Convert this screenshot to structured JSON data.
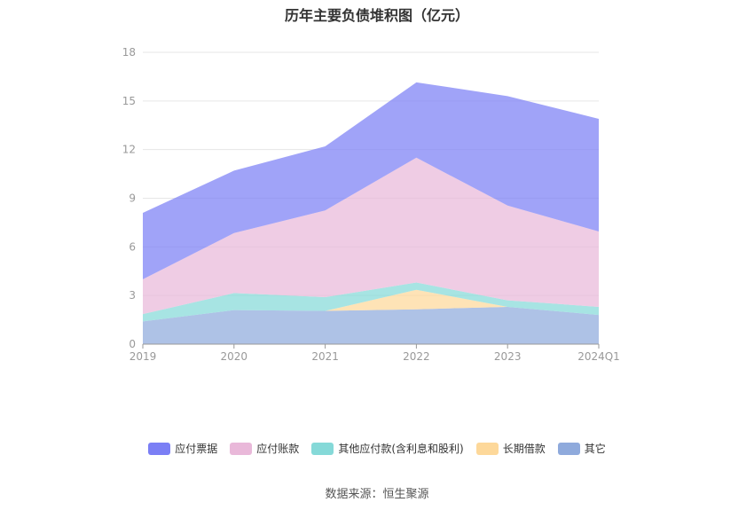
{
  "title": "历年主要负债堆积图（亿元）",
  "source": "数据来源：恒生聚源",
  "chart_data": {
    "type": "area",
    "stacked": true,
    "categories": [
      "2019",
      "2020",
      "2021",
      "2022",
      "2023",
      "2024Q1"
    ],
    "ylim": [
      0,
      18
    ],
    "yticks": [
      0,
      3,
      6,
      9,
      12,
      15,
      18
    ],
    "grid": true,
    "legend_position": "bottom",
    "series": [
      {
        "name": "其它",
        "color": "#8faadc",
        "values": [
          1.4,
          2.1,
          2.05,
          2.15,
          2.3,
          1.8
        ]
      },
      {
        "name": "长期借款",
        "color": "#fdd89a",
        "values": [
          0,
          0,
          0,
          1.2,
          0,
          0
        ]
      },
      {
        "name": "其他应付款(含利息和股利)",
        "color": "#85d9d8",
        "values": [
          0.45,
          1.05,
          0.85,
          0.45,
          0.4,
          0.5
        ]
      },
      {
        "name": "应付账款",
        "color": "#e9b8d9",
        "values": [
          2.15,
          3.7,
          5.35,
          7.7,
          5.85,
          4.65
        ]
      },
      {
        "name": "应付票据",
        "color": "#7b7ff5",
        "values": [
          4.1,
          3.85,
          3.95,
          4.65,
          6.75,
          6.95
        ]
      }
    ]
  }
}
